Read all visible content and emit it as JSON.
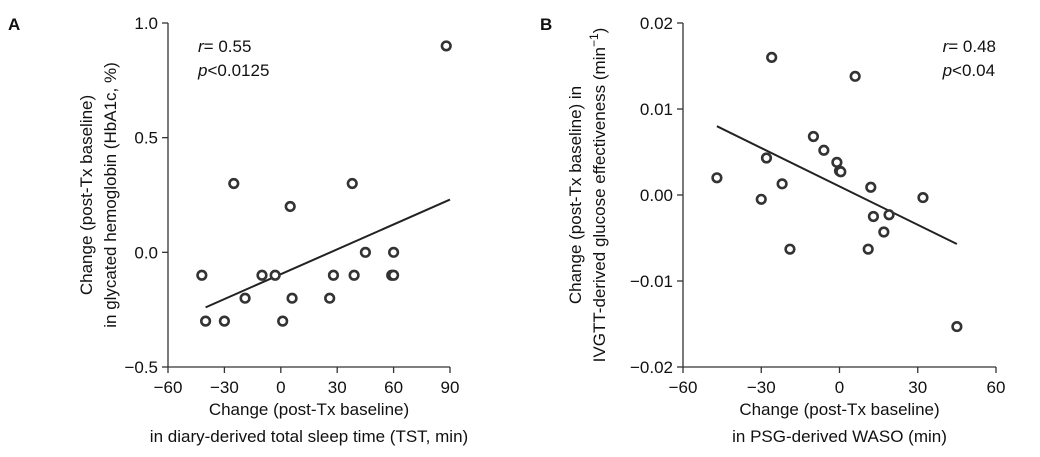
{
  "chart_data": [
    {
      "type": "scatter",
      "panel_label": "A",
      "xlabel_line1": "Change (post-Tx baseline)",
      "xlabel_line2": "in diary-derived total sleep time (TST, min)",
      "ylabel_line1": "Change (post-Tx baseline)",
      "ylabel_line2": "in glycated hemoglobin (HbA1c, %)",
      "xlim": [
        -60,
        90
      ],
      "ylim": [
        -0.5,
        1.0
      ],
      "xticks": [
        -60,
        -30,
        0,
        30,
        60,
        90
      ],
      "xtick_labels": [
        "−60",
        "−30",
        "0",
        "30",
        "60",
        "90"
      ],
      "yticks": [
        -0.5,
        0.0,
        0.5,
        1.0
      ],
      "ytick_labels": [
        "−0.5",
        "0.0",
        "0.5",
        "1.0"
      ],
      "annotation_r_symbol": "r",
      "annotation_r_value": "= 0.55",
      "annotation_p_symbol": "p",
      "annotation_p_value": "<0.0125",
      "annotation_position": "top-left",
      "grid": false,
      "marker_color": "#333333",
      "line_color": "#222222",
      "points": [
        {
          "x": -42,
          "y": -0.1
        },
        {
          "x": -40,
          "y": -0.3
        },
        {
          "x": -30,
          "y": -0.3
        },
        {
          "x": -25,
          "y": 0.3
        },
        {
          "x": -19,
          "y": -0.2
        },
        {
          "x": -10,
          "y": -0.1
        },
        {
          "x": -3,
          "y": -0.1
        },
        {
          "x": 1,
          "y": -0.3
        },
        {
          "x": 5,
          "y": 0.2
        },
        {
          "x": 6,
          "y": -0.2
        },
        {
          "x": 26,
          "y": -0.2
        },
        {
          "x": 28,
          "y": -0.1
        },
        {
          "x": 38,
          "y": 0.3
        },
        {
          "x": 39,
          "y": -0.1
        },
        {
          "x": 45,
          "y": 0.0
        },
        {
          "x": 59,
          "y": -0.1
        },
        {
          "x": 60,
          "y": 0.0
        },
        {
          "x": 60,
          "y": -0.1
        },
        {
          "x": 88,
          "y": 0.9
        }
      ],
      "trendline": {
        "x": [
          -40,
          90
        ],
        "y": [
          -0.24,
          0.23
        ]
      }
    },
    {
      "type": "scatter",
      "panel_label": "B",
      "xlabel_line1": "Change (post-Tx baseline)",
      "xlabel_line2": "in PSG-derived WASO (min)",
      "ylabel_line1": "Change (post-Tx baseline) in",
      "ylabel_line2": "IVGTT-derived glucose effectiveness (min",
      "ylabel_sup": "−1",
      "ylabel_close": ")",
      "xlim": [
        -60,
        60
      ],
      "ylim": [
        -0.02,
        0.02
      ],
      "xticks": [
        -60,
        -30,
        0,
        30,
        60
      ],
      "xtick_labels": [
        "−60",
        "−30",
        "0",
        "30",
        "60"
      ],
      "yticks": [
        -0.02,
        -0.01,
        0.0,
        0.01,
        0.02
      ],
      "ytick_labels": [
        "−0.02",
        "−0.01",
        "0.00",
        "0.01",
        "0.02"
      ],
      "annotation_r_symbol": "r",
      "annotation_r_value": "= 0.48",
      "annotation_p_symbol": "p",
      "annotation_p_value": "<0.04",
      "annotation_position": "top-right",
      "grid": false,
      "marker_color": "#333333",
      "line_color": "#222222",
      "points": [
        {
          "x": -47,
          "y": 0.002
        },
        {
          "x": -30,
          "y": -0.0005
        },
        {
          "x": -28,
          "y": 0.0043
        },
        {
          "x": -26,
          "y": 0.016
        },
        {
          "x": -22,
          "y": 0.0013
        },
        {
          "x": -19,
          "y": -0.0063
        },
        {
          "x": -10,
          "y": 0.0068
        },
        {
          "x": -6,
          "y": 0.0052
        },
        {
          "x": -1,
          "y": 0.0038
        },
        {
          "x": 0,
          "y": 0.0028
        },
        {
          "x": 0.5,
          "y": 0.0027
        },
        {
          "x": 6,
          "y": 0.0138
        },
        {
          "x": 11,
          "y": -0.0063
        },
        {
          "x": 12,
          "y": 0.0009
        },
        {
          "x": 13,
          "y": -0.0025
        },
        {
          "x": 17,
          "y": -0.0043
        },
        {
          "x": 19,
          "y": -0.0023
        },
        {
          "x": 32,
          "y": -0.0003
        },
        {
          "x": 45,
          "y": -0.0153
        }
      ],
      "trendline": {
        "x": [
          -47,
          45
        ],
        "y": [
          0.008,
          -0.0057
        ]
      }
    }
  ]
}
